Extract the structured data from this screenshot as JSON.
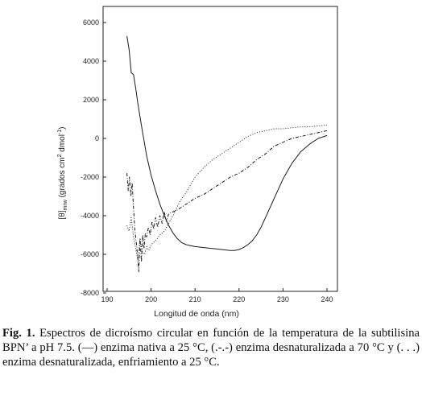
{
  "chart_data": {
    "type": "line",
    "xlabel": "Longitud de onda (nm)",
    "ylabel": {
      "base": "[θ]",
      "sub": "mrw",
      "rest": " (grados cm",
      "sup1": "2",
      "rest2": " dmol",
      "sup2": "-1",
      "close": ")"
    },
    "xlim": [
      190,
      240
    ],
    "ylim": [
      -8000,
      6000
    ],
    "x_ticks": [
      "190",
      "200",
      "210",
      "220",
      "230",
      "240"
    ],
    "y_ticks": [
      "-8000",
      "-6000",
      "-4000",
      "-2000",
      "0",
      "2000",
      "4000",
      "6000"
    ],
    "x_tick_values": [
      190,
      200,
      210,
      220,
      230,
      240
    ],
    "y_tick_values": [
      -8000,
      -6000,
      -4000,
      -2000,
      0,
      2000,
      4000,
      6000
    ],
    "grid": false,
    "legend": "none",
    "series": [
      {
        "style": "solid",
        "x": [
          194.5,
          195,
          195.5,
          196,
          196.5,
          197,
          198,
          199,
          200,
          201,
          202,
          203,
          204,
          205,
          206,
          207,
          208,
          209,
          210,
          212,
          214,
          216,
          218,
          219,
          220,
          221,
          222,
          223,
          224,
          225,
          226,
          228,
          230,
          232,
          234,
          236,
          238,
          240
        ],
        "y": [
          5300,
          4600,
          3400,
          3300,
          2600,
          1800,
          400,
          -900,
          -1900,
          -2700,
          -3400,
          -4000,
          -4500,
          -4900,
          -5200,
          -5400,
          -5500,
          -5550,
          -5600,
          -5650,
          -5700,
          -5750,
          -5800,
          -5800,
          -5750,
          -5650,
          -5500,
          -5300,
          -5000,
          -4600,
          -4100,
          -3100,
          -2100,
          -1300,
          -700,
          -300,
          0,
          150
        ]
      },
      {
        "style": "dash-dot",
        "x": [
          194.5,
          194.8,
          195.1,
          195.4,
          195.7,
          196,
          196.3,
          196.6,
          196.9,
          197.2,
          197.5,
          197.8,
          198.1,
          198.4,
          198.7,
          199,
          199.4,
          199.8,
          200.2,
          200.6,
          201,
          201.5,
          202,
          202.5,
          203,
          203.5,
          204,
          206,
          208,
          210,
          212,
          214,
          216,
          218,
          220,
          222,
          224,
          226,
          228,
          230,
          232,
          234,
          236,
          238,
          240
        ],
        "y": [
          -1800,
          -2700,
          -2000,
          -3000,
          -2300,
          -3600,
          -4700,
          -5300,
          -6000,
          -6900,
          -5200,
          -6400,
          -5000,
          -5700,
          -4900,
          -5100,
          -4600,
          -5000,
          -4300,
          -4700,
          -4100,
          -4600,
          -4000,
          -4400,
          -3800,
          -4300,
          -3900,
          -3700,
          -3400,
          -3100,
          -2900,
          -2600,
          -2300,
          -2000,
          -1800,
          -1500,
          -1100,
          -800,
          -400,
          -200,
          0,
          100,
          200,
          300,
          400
        ]
      },
      {
        "style": "dotted",
        "x": [
          194.5,
          195,
          195.5,
          196,
          196.5,
          197,
          197.5,
          198,
          198.5,
          199,
          199.5,
          200,
          201,
          202,
          203,
          204,
          205,
          206,
          207,
          208,
          209,
          210,
          212,
          214,
          216,
          218,
          220,
          222,
          224,
          226,
          228,
          230,
          232,
          234,
          236,
          238,
          240
        ],
        "y": [
          -4500,
          -4800,
          -4100,
          -5100,
          -5700,
          -6300,
          -5200,
          -5900,
          -6000,
          -5600,
          -5800,
          -5500,
          -5300,
          -5000,
          -4800,
          -4400,
          -4000,
          -3500,
          -3100,
          -2800,
          -2400,
          -2000,
          -1500,
          -1100,
          -800,
          -500,
          -200,
          100,
          300,
          400,
          500,
          500,
          550,
          600,
          600,
          650,
          700
        ]
      }
    ]
  },
  "caption": {
    "label": "Fig. 1.",
    "text": " Espectros de dicroísmo circular en función de la temperatura de la subtilisina BPN’ a pH 7.5. (—) enzima nativa a 25 °C, (.-.-) enzima desnaturalizada a 70 °C y (. . .) enzima desnaturalizada, enfriamiento a 25 °C."
  }
}
